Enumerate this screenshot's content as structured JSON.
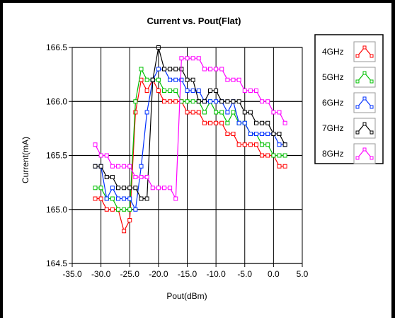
{
  "chart_data": {
    "type": "line",
    "title": "Current vs. Pout(Flat)",
    "xlabel": "Pout(dBm)",
    "ylabel": "Current(mA)",
    "xlim": [
      -35,
      5
    ],
    "ylim": [
      164.5,
      166.5
    ],
    "xticks": [
      "-35.0",
      "-30.0",
      "-25.0",
      "-20.0",
      "-15.0",
      "-10.0",
      "-5.0",
      "0.0",
      "5.0"
    ],
    "yticks": [
      "164.5",
      "165.0",
      "165.5",
      "166.0",
      "166.5"
    ],
    "grid": true,
    "legend_position": "right",
    "series": [
      {
        "name": "4GHz",
        "color": "#ff0000",
        "points": [
          [
            -31,
            165.1
          ],
          [
            -30,
            165.1
          ],
          [
            -29,
            165.0
          ],
          [
            -28,
            165.0
          ],
          [
            -27,
            165.0
          ],
          [
            -26,
            164.8
          ],
          [
            -25,
            164.9
          ],
          [
            -24,
            165.9
          ],
          [
            -23,
            166.2
          ],
          [
            -22,
            166.1
          ],
          [
            -21,
            166.2
          ],
          [
            -20,
            166.1
          ],
          [
            -19,
            166.0
          ],
          [
            -18,
            166.0
          ],
          [
            -17,
            166.0
          ],
          [
            -16,
            166.0
          ],
          [
            -15,
            165.9
          ],
          [
            -14,
            165.9
          ],
          [
            -13,
            165.9
          ],
          [
            -12,
            165.8
          ],
          [
            -11,
            165.8
          ],
          [
            -10,
            165.8
          ],
          [
            -9,
            165.8
          ],
          [
            -8,
            165.7
          ],
          [
            -7,
            165.7
          ],
          [
            -6,
            165.6
          ],
          [
            -5,
            165.6
          ],
          [
            -4,
            165.6
          ],
          [
            -3,
            165.6
          ],
          [
            -2,
            165.5
          ],
          [
            -1,
            165.5
          ],
          [
            0,
            165.5
          ],
          [
            1,
            165.4
          ],
          [
            2,
            165.4
          ]
        ]
      },
      {
        "name": "5GHz",
        "color": "#00c000",
        "points": [
          [
            -31,
            165.2
          ],
          [
            -30,
            165.2
          ],
          [
            -29,
            165.1
          ],
          [
            -28,
            165.1
          ],
          [
            -27,
            165.0
          ],
          [
            -26,
            165.0
          ],
          [
            -25,
            165.0
          ],
          [
            -24,
            166.0
          ],
          [
            -23,
            166.3
          ],
          [
            -22,
            166.2
          ],
          [
            -21,
            166.2
          ],
          [
            -20,
            166.2
          ],
          [
            -19,
            166.1
          ],
          [
            -18,
            166.1
          ],
          [
            -17,
            166.1
          ],
          [
            -16,
            166.0
          ],
          [
            -15,
            166.0
          ],
          [
            -14,
            166.0
          ],
          [
            -13,
            166.0
          ],
          [
            -12,
            165.9
          ],
          [
            -11,
            166.0
          ],
          [
            -10,
            165.9
          ],
          [
            -9,
            165.9
          ],
          [
            -8,
            165.8
          ],
          [
            -7,
            165.9
          ],
          [
            -6,
            165.8
          ],
          [
            -5,
            165.8
          ],
          [
            -4,
            165.7
          ],
          [
            -3,
            165.7
          ],
          [
            -2,
            165.6
          ],
          [
            -1,
            165.6
          ],
          [
            0,
            165.5
          ],
          [
            1,
            165.5
          ],
          [
            2,
            165.5
          ]
        ]
      },
      {
        "name": "6GHz",
        "color": "#0030ff",
        "points": [
          [
            -31,
            165.4
          ],
          [
            -30,
            165.4
          ],
          [
            -29,
            165.1
          ],
          [
            -28,
            165.2
          ],
          [
            -27,
            165.1
          ],
          [
            -26,
            165.1
          ],
          [
            -25,
            165.1
          ],
          [
            -24,
            165.0
          ],
          [
            -23,
            165.4
          ],
          [
            -22,
            165.9
          ],
          [
            -21,
            166.2
          ],
          [
            -20,
            166.3
          ],
          [
            -19,
            166.3
          ],
          [
            -18,
            166.2
          ],
          [
            -17,
            166.2
          ],
          [
            -16,
            166.2
          ],
          [
            -15,
            166.1
          ],
          [
            -14,
            166.1
          ],
          [
            -13,
            166.1
          ],
          [
            -12,
            166.0
          ],
          [
            -11,
            166.0
          ],
          [
            -10,
            166.0
          ],
          [
            -9,
            166.0
          ],
          [
            -8,
            165.9
          ],
          [
            -7,
            166.0
          ],
          [
            -6,
            165.8
          ],
          [
            -5,
            165.8
          ],
          [
            -4,
            165.7
          ],
          [
            -3,
            165.7
          ],
          [
            -2,
            165.7
          ],
          [
            -1,
            165.7
          ],
          [
            0,
            165.7
          ],
          [
            1,
            165.6
          ],
          [
            2,
            165.6
          ]
        ]
      },
      {
        "name": "7GHz",
        "color": "#000000",
        "points": [
          [
            -31,
            165.4
          ],
          [
            -30,
            165.4
          ],
          [
            -29,
            165.3
          ],
          [
            -28,
            165.3
          ],
          [
            -27,
            165.2
          ],
          [
            -26,
            165.2
          ],
          [
            -25,
            165.2
          ],
          [
            -24,
            165.2
          ],
          [
            -23,
            165.1
          ],
          [
            -22,
            165.1
          ],
          [
            -21,
            166.2
          ],
          [
            -20,
            166.5
          ],
          [
            -19,
            166.3
          ],
          [
            -18,
            166.3
          ],
          [
            -17,
            166.3
          ],
          [
            -16,
            166.3
          ],
          [
            -15,
            166.2
          ],
          [
            -14,
            166.2
          ],
          [
            -13,
            166.0
          ],
          [
            -12,
            166.0
          ],
          [
            -11,
            166.1
          ],
          [
            -10,
            166.1
          ],
          [
            -9,
            166.0
          ],
          [
            -8,
            166.0
          ],
          [
            -7,
            166.0
          ],
          [
            -6,
            166.0
          ],
          [
            -5,
            165.9
          ],
          [
            -4,
            165.9
          ],
          [
            -3,
            165.8
          ],
          [
            -2,
            165.8
          ],
          [
            -1,
            165.8
          ],
          [
            0,
            165.7
          ],
          [
            1,
            165.7
          ],
          [
            2,
            165.6
          ]
        ]
      },
      {
        "name": "8GHz",
        "color": "#ff00ff",
        "points": [
          [
            -31,
            165.6
          ],
          [
            -30,
            165.5
          ],
          [
            -29,
            165.5
          ],
          [
            -28,
            165.4
          ],
          [
            -27,
            165.4
          ],
          [
            -26,
            165.4
          ],
          [
            -25,
            165.4
          ],
          [
            -24,
            165.3
          ],
          [
            -23,
            165.3
          ],
          [
            -22,
            165.3
          ],
          [
            -21,
            165.2
          ],
          [
            -20,
            165.2
          ],
          [
            -19,
            165.2
          ],
          [
            -18,
            165.2
          ],
          [
            -17,
            165.1
          ],
          [
            -16,
            166.4
          ],
          [
            -15,
            166.4
          ],
          [
            -14,
            166.4
          ],
          [
            -13,
            166.4
          ],
          [
            -12,
            166.3
          ],
          [
            -11,
            166.3
          ],
          [
            -10,
            166.3
          ],
          [
            -9,
            166.3
          ],
          [
            -8,
            166.2
          ],
          [
            -7,
            166.2
          ],
          [
            -6,
            166.2
          ],
          [
            -5,
            166.1
          ],
          [
            -4,
            166.1
          ],
          [
            -3,
            166.1
          ],
          [
            -2,
            166.0
          ],
          [
            -1,
            166.0
          ],
          [
            0,
            165.9
          ],
          [
            1,
            165.9
          ],
          [
            2,
            165.8
          ]
        ]
      }
    ]
  }
}
